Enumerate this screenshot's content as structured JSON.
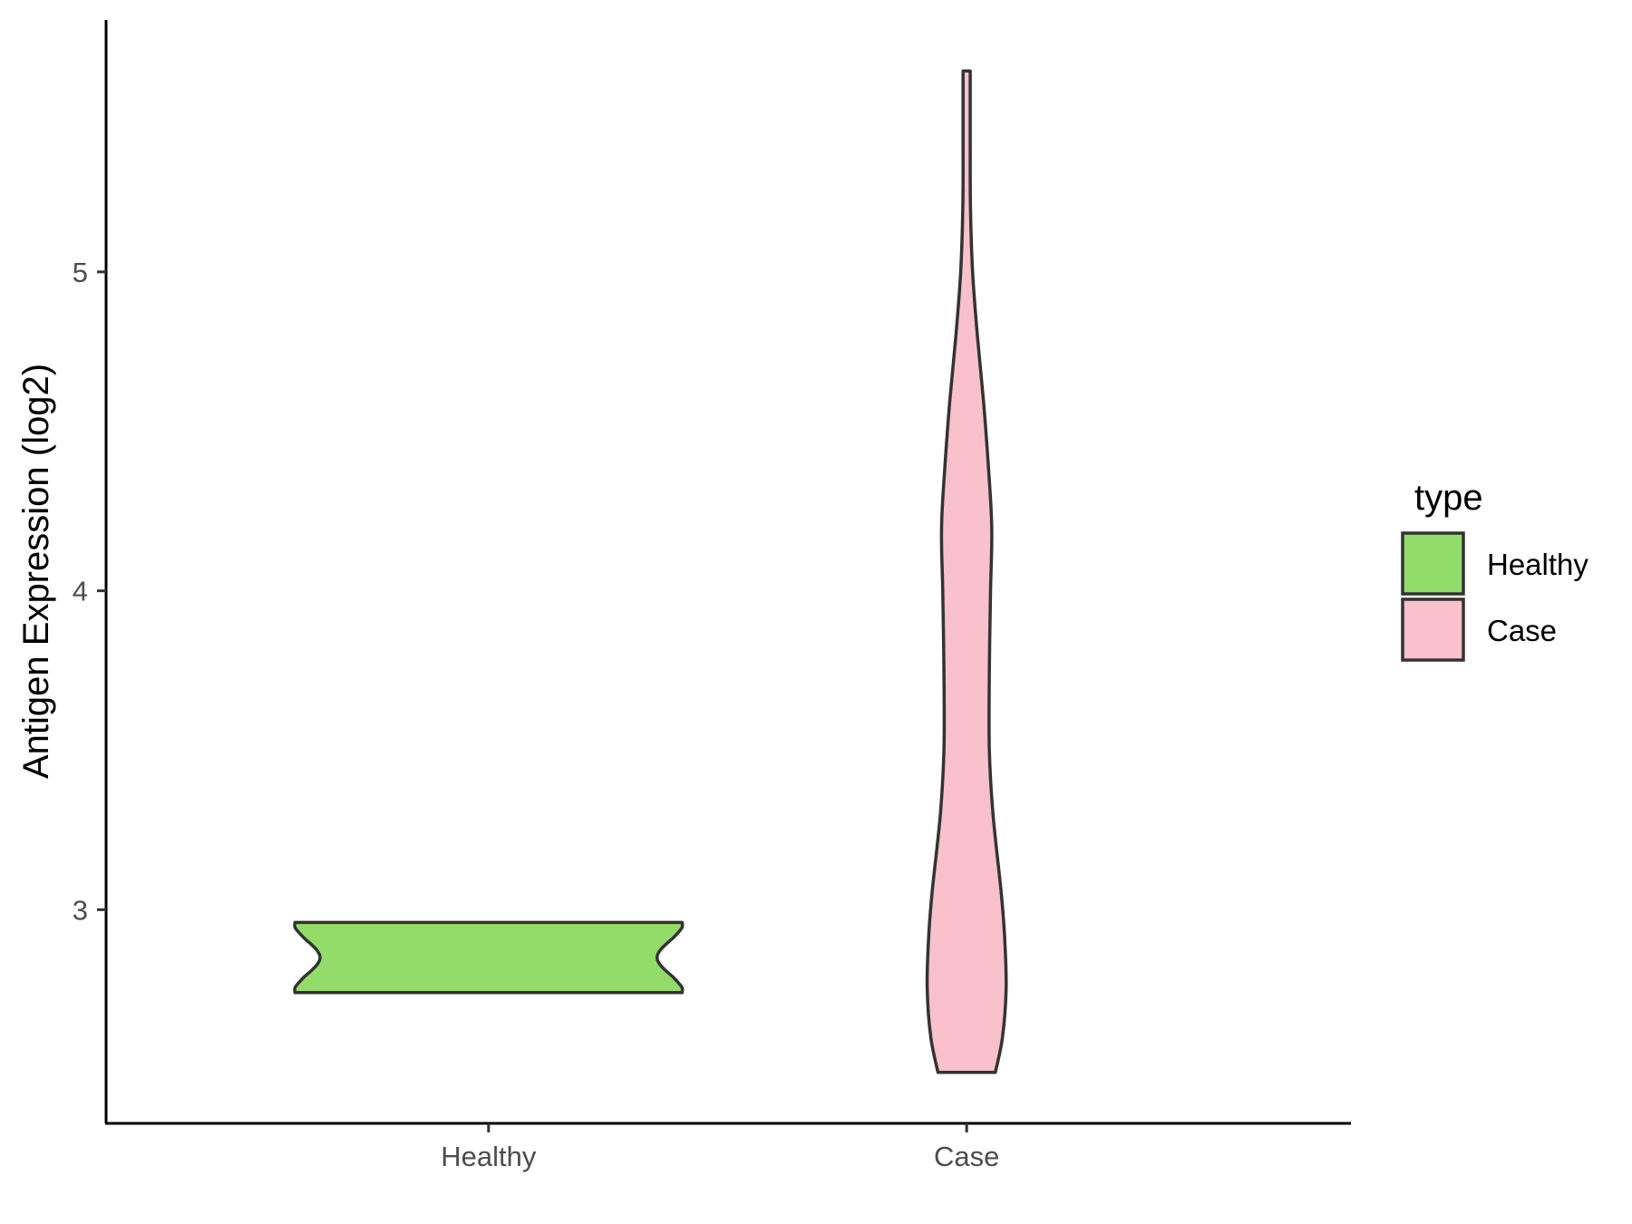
{
  "chart_data": {
    "type": "violin",
    "title": "",
    "xlabel": "",
    "ylabel": "Antigen Expression (log2)",
    "categories": [
      "Healthy",
      "Case"
    ],
    "ylim": [
      2.33,
      5.79
    ],
    "yticks": [
      3,
      4,
      5
    ],
    "grid": false,
    "legend": {
      "title": "type",
      "placement": "right",
      "entries": [
        {
          "label": "Healthy",
          "color": "#93DC6A"
        },
        {
          "label": "Case",
          "color": "#F8C1CB"
        }
      ]
    },
    "series": [
      {
        "name": "Healthy",
        "color": "#93DC6A",
        "y_min": 2.74,
        "y_max": 2.96,
        "density": [
          [
            2.74,
            0.81
          ],
          [
            2.755,
            0.81
          ],
          [
            2.77,
            0.795
          ],
          [
            2.79,
            0.77
          ],
          [
            2.81,
            0.74
          ],
          [
            2.83,
            0.715
          ],
          [
            2.85,
            0.705
          ],
          [
            2.87,
            0.715
          ],
          [
            2.89,
            0.74
          ],
          [
            2.91,
            0.77
          ],
          [
            2.93,
            0.795
          ],
          [
            2.945,
            0.81
          ],
          [
            2.96,
            0.81
          ]
        ]
      },
      {
        "name": "Case",
        "color": "#F8C1CB",
        "y_min": 2.49,
        "y_max": 5.63,
        "density": [
          [
            2.49,
            0.12
          ],
          [
            2.6,
            0.15
          ],
          [
            2.75,
            0.165
          ],
          [
            2.9,
            0.16
          ],
          [
            3.05,
            0.145
          ],
          [
            3.3,
            0.11
          ],
          [
            3.5,
            0.095
          ],
          [
            3.75,
            0.095
          ],
          [
            4.0,
            0.1
          ],
          [
            4.2,
            0.105
          ],
          [
            4.4,
            0.09
          ],
          [
            4.6,
            0.07
          ],
          [
            4.8,
            0.045
          ],
          [
            5.0,
            0.025
          ],
          [
            5.2,
            0.016
          ],
          [
            5.4,
            0.015
          ],
          [
            5.63,
            0.015
          ]
        ]
      }
    ]
  }
}
